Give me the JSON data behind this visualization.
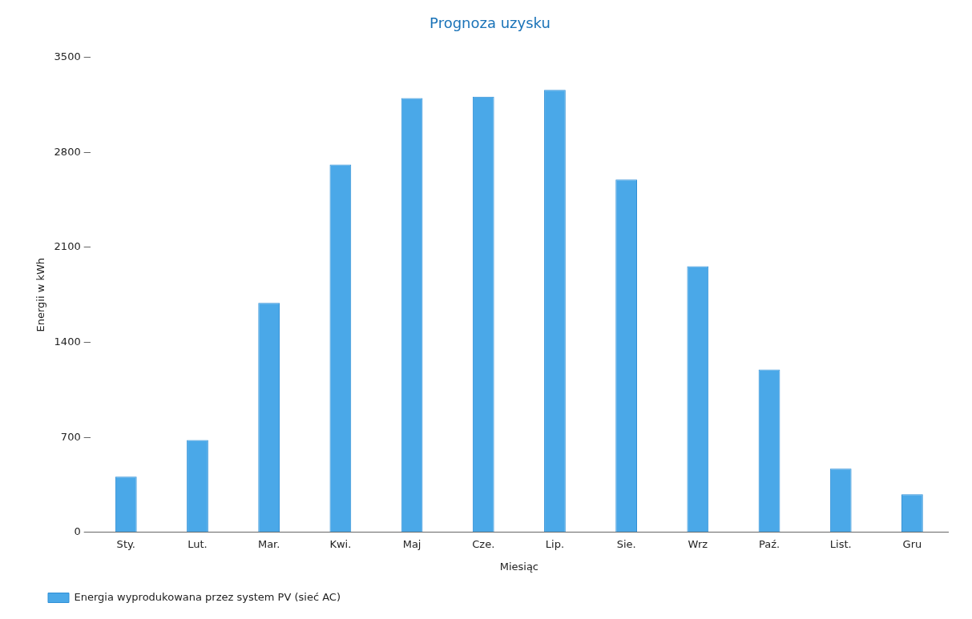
{
  "chart_data": {
    "type": "bar",
    "title": "Prognoza uzysku",
    "xlabel": "Miesiąc",
    "ylabel": "Energii w kWh",
    "categories": [
      "Sty.",
      "Lut.",
      "Mar.",
      "Kwi.",
      "Maj",
      "Cze.",
      "Lip.",
      "Sie.",
      "Wrz",
      "Paź.",
      "List.",
      "Gru"
    ],
    "series": [
      {
        "name": "Energia wyprodukowana przez system PV (sieć AC)",
        "color": "#4aa8e8",
        "values": [
          410,
          680,
          1690,
          2710,
          3200,
          3210,
          3260,
          2600,
          1960,
          1200,
          470,
          280
        ]
      }
    ],
    "ylim": [
      0,
      3500
    ],
    "yticks": [
      0,
      700,
      1400,
      2100,
      2800,
      3500
    ],
    "grid": false,
    "legend": "bottom left"
  }
}
